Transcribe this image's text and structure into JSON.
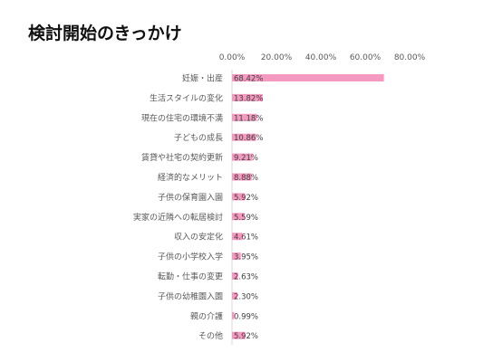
{
  "chart_data": {
    "type": "bar",
    "orientation": "horizontal",
    "title": "検討開始のきっかけ",
    "categories": [
      "妊娠・出産",
      "生活スタイルの変化",
      "現在の住宅の環境不満",
      "子どもの成長",
      "賃貸や社宅の契約更新",
      "経済的なメリット",
      "子供の保育園入園",
      "実家の近隣への転居検討",
      "収入の安定化",
      "子供の小学校入学",
      "転勤・仕事の変更",
      "子供の幼稚園入園",
      "親の介護",
      "その他"
    ],
    "values": [
      68.42,
      13.82,
      11.18,
      10.86,
      9.21,
      8.88,
      5.92,
      5.59,
      4.61,
      3.95,
      2.63,
      2.3,
      0.99,
      5.92
    ],
    "data_labels": [
      "68.42%",
      "13.82%",
      "11.18%",
      "10.86%",
      "9.21%",
      "8.88%",
      "5.92%",
      "5.59%",
      "4.61%",
      "3.95%",
      "2.63%",
      "2.30%",
      "0.99%",
      "5.92%"
    ],
    "xticks": [
      "0.00%",
      "20.00%",
      "40.00%",
      "60.00%",
      "80.00%"
    ],
    "xlim": [
      0,
      80
    ],
    "xlabel": "",
    "ylabel": "",
    "grid": false,
    "legend": "none",
    "bar_color": "#f49ac1"
  }
}
